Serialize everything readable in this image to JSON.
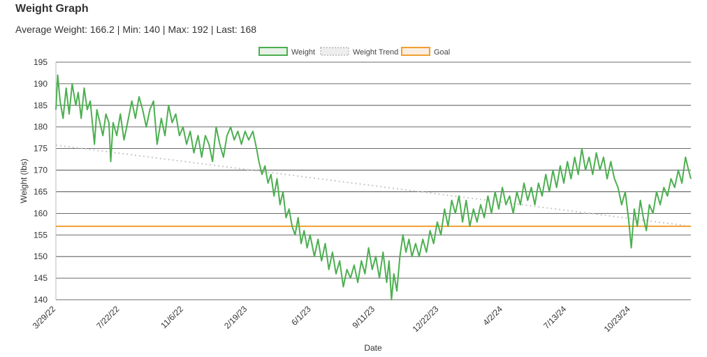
{
  "page": {
    "title": "Weight Graph",
    "stats_text": "Average Weight: 166.2 | Min: 140 | Max: 192 | Last: 168"
  },
  "chart_data": {
    "type": "line",
    "xlabel": "Date",
    "ylabel": "Weight (lbs)",
    "ylim": [
      140,
      195
    ],
    "yticks": [
      140,
      145,
      150,
      155,
      160,
      165,
      170,
      175,
      180,
      185,
      190,
      195
    ],
    "x_tick_labels": [
      "3/29/22",
      "7/22/22",
      "11/6/22",
      "2/19/23",
      "6/1/23",
      "9/11/23",
      "12/22/23",
      "4/2/24",
      "7/13/24",
      "10/23/24"
    ],
    "x_range": [
      "2022-03-29",
      "2025-02-15"
    ],
    "grid": true,
    "legend_position": "top-center",
    "colors": {
      "weight": "#4caf50",
      "trend": "#c8c8c8",
      "goal": "#f0a030"
    },
    "legend": [
      {
        "label": "Weight",
        "style": "weight"
      },
      {
        "label": "Weight Trend",
        "style": "trend"
      },
      {
        "label": "Goal",
        "style": "goal"
      }
    ],
    "series": [
      {
        "name": "Weight",
        "points": [
          [
            "2022-03-29",
            184
          ],
          [
            "2022-04-01",
            192
          ],
          [
            "2022-04-05",
            186
          ],
          [
            "2022-04-10",
            182
          ],
          [
            "2022-04-15",
            189
          ],
          [
            "2022-04-20",
            183
          ],
          [
            "2022-04-25",
            190
          ],
          [
            "2022-05-01",
            185
          ],
          [
            "2022-05-05",
            188
          ],
          [
            "2022-05-10",
            182
          ],
          [
            "2022-05-15",
            189
          ],
          [
            "2022-05-20",
            184
          ],
          [
            "2022-05-25",
            186
          ],
          [
            "2022-06-01",
            176
          ],
          [
            "2022-06-05",
            184
          ],
          [
            "2022-06-10",
            181
          ],
          [
            "2022-06-15",
            178
          ],
          [
            "2022-06-20",
            183
          ],
          [
            "2022-06-25",
            181
          ],
          [
            "2022-06-28",
            172
          ],
          [
            "2022-07-02",
            181
          ],
          [
            "2022-07-08",
            178
          ],
          [
            "2022-07-14",
            183
          ],
          [
            "2022-07-20",
            177
          ],
          [
            "2022-07-26",
            181
          ],
          [
            "2022-08-02",
            186
          ],
          [
            "2022-08-08",
            182
          ],
          [
            "2022-08-14",
            187
          ],
          [
            "2022-08-20",
            184
          ],
          [
            "2022-08-26",
            180
          ],
          [
            "2022-09-01",
            184
          ],
          [
            "2022-09-07",
            186
          ],
          [
            "2022-09-13",
            176
          ],
          [
            "2022-09-20",
            182
          ],
          [
            "2022-09-26",
            178
          ],
          [
            "2022-10-02",
            185
          ],
          [
            "2022-10-08",
            181
          ],
          [
            "2022-10-14",
            183
          ],
          [
            "2022-10-20",
            178
          ],
          [
            "2022-10-26",
            180
          ],
          [
            "2022-11-01",
            176
          ],
          [
            "2022-11-07",
            179
          ],
          [
            "2022-11-13",
            174
          ],
          [
            "2022-11-20",
            178
          ],
          [
            "2022-11-26",
            173
          ],
          [
            "2022-12-02",
            178
          ],
          [
            "2022-12-08",
            176
          ],
          [
            "2022-12-14",
            172
          ],
          [
            "2022-12-20",
            180
          ],
          [
            "2022-12-26",
            176
          ],
          [
            "2023-01-01",
            173
          ],
          [
            "2023-01-07",
            178
          ],
          [
            "2023-01-13",
            180
          ],
          [
            "2023-01-19",
            177
          ],
          [
            "2023-01-25",
            179
          ],
          [
            "2023-01-31",
            176
          ],
          [
            "2023-02-06",
            179
          ],
          [
            "2023-02-12",
            177
          ],
          [
            "2023-02-19",
            179
          ],
          [
            "2023-02-25",
            175
          ],
          [
            "2023-03-01",
            172
          ],
          [
            "2023-03-06",
            169
          ],
          [
            "2023-03-11",
            171
          ],
          [
            "2023-03-16",
            167
          ],
          [
            "2023-03-21",
            169
          ],
          [
            "2023-03-26",
            164
          ],
          [
            "2023-03-31",
            168
          ],
          [
            "2023-04-05",
            162
          ],
          [
            "2023-04-10",
            165
          ],
          [
            "2023-04-15",
            159
          ],
          [
            "2023-04-20",
            161
          ],
          [
            "2023-04-25",
            157
          ],
          [
            "2023-04-30",
            155
          ],
          [
            "2023-05-05",
            159
          ],
          [
            "2023-05-10",
            153
          ],
          [
            "2023-05-15",
            156
          ],
          [
            "2023-05-20",
            152
          ],
          [
            "2023-05-25",
            155
          ],
          [
            "2023-06-01",
            150
          ],
          [
            "2023-06-07",
            154
          ],
          [
            "2023-06-13",
            149
          ],
          [
            "2023-06-19",
            153
          ],
          [
            "2023-06-25",
            147
          ],
          [
            "2023-07-01",
            151
          ],
          [
            "2023-07-07",
            146
          ],
          [
            "2023-07-13",
            149
          ],
          [
            "2023-07-19",
            143
          ],
          [
            "2023-07-25",
            147
          ],
          [
            "2023-07-31",
            145
          ],
          [
            "2023-08-06",
            148
          ],
          [
            "2023-08-12",
            144
          ],
          [
            "2023-08-18",
            149
          ],
          [
            "2023-08-24",
            146
          ],
          [
            "2023-08-30",
            152
          ],
          [
            "2023-09-05",
            147
          ],
          [
            "2023-09-11",
            150
          ],
          [
            "2023-09-17",
            145
          ],
          [
            "2023-09-23",
            151
          ],
          [
            "2023-09-29",
            144
          ],
          [
            "2023-10-03",
            149
          ],
          [
            "2023-10-07",
            140
          ],
          [
            "2023-10-11",
            146
          ],
          [
            "2023-10-16",
            142
          ],
          [
            "2023-10-21",
            150
          ],
          [
            "2023-10-26",
            155
          ],
          [
            "2023-10-31",
            151
          ],
          [
            "2023-11-05",
            154
          ],
          [
            "2023-11-10",
            150
          ],
          [
            "2023-11-16",
            153
          ],
          [
            "2023-11-22",
            150
          ],
          [
            "2023-11-28",
            154
          ],
          [
            "2023-12-04",
            151
          ],
          [
            "2023-12-10",
            156
          ],
          [
            "2023-12-16",
            153
          ],
          [
            "2023-12-22",
            158
          ],
          [
            "2023-12-28",
            155
          ],
          [
            "2024-01-03",
            161
          ],
          [
            "2024-01-09",
            157
          ],
          [
            "2024-01-15",
            163
          ],
          [
            "2024-01-21",
            160
          ],
          [
            "2024-01-27",
            164
          ],
          [
            "2024-02-02",
            158
          ],
          [
            "2024-02-08",
            163
          ],
          [
            "2024-02-14",
            157
          ],
          [
            "2024-02-20",
            161
          ],
          [
            "2024-02-26",
            158
          ],
          [
            "2024-03-03",
            162
          ],
          [
            "2024-03-09",
            159
          ],
          [
            "2024-03-15",
            164
          ],
          [
            "2024-03-21",
            160
          ],
          [
            "2024-03-27",
            165
          ],
          [
            "2024-04-02",
            161
          ],
          [
            "2024-04-08",
            166
          ],
          [
            "2024-04-14",
            162
          ],
          [
            "2024-04-20",
            164
          ],
          [
            "2024-04-26",
            160
          ],
          [
            "2024-05-02",
            165
          ],
          [
            "2024-05-08",
            162
          ],
          [
            "2024-05-14",
            167
          ],
          [
            "2024-05-20",
            163
          ],
          [
            "2024-05-26",
            166
          ],
          [
            "2024-06-01",
            162
          ],
          [
            "2024-06-07",
            167
          ],
          [
            "2024-06-13",
            164
          ],
          [
            "2024-06-19",
            169
          ],
          [
            "2024-06-25",
            165
          ],
          [
            "2024-07-01",
            170
          ],
          [
            "2024-07-07",
            166
          ],
          [
            "2024-07-13",
            171
          ],
          [
            "2024-07-19",
            167
          ],
          [
            "2024-07-25",
            172
          ],
          [
            "2024-07-31",
            168
          ],
          [
            "2024-08-06",
            173
          ],
          [
            "2024-08-12",
            169
          ],
          [
            "2024-08-18",
            175
          ],
          [
            "2024-08-24",
            170
          ],
          [
            "2024-08-30",
            173
          ],
          [
            "2024-09-05",
            169
          ],
          [
            "2024-09-11",
            174
          ],
          [
            "2024-09-17",
            170
          ],
          [
            "2024-09-23",
            173
          ],
          [
            "2024-09-29",
            168
          ],
          [
            "2024-10-05",
            172
          ],
          [
            "2024-10-11",
            168
          ],
          [
            "2024-10-17",
            166
          ],
          [
            "2024-10-23",
            162
          ],
          [
            "2024-10-29",
            165
          ],
          [
            "2024-11-04",
            158
          ],
          [
            "2024-11-08",
            152
          ],
          [
            "2024-11-13",
            161
          ],
          [
            "2024-11-18",
            157
          ],
          [
            "2024-11-23",
            163
          ],
          [
            "2024-11-28",
            159
          ],
          [
            "2024-12-03",
            156
          ],
          [
            "2024-12-08",
            162
          ],
          [
            "2024-12-14",
            160
          ],
          [
            "2024-12-20",
            165
          ],
          [
            "2024-12-26",
            162
          ],
          [
            "2025-01-01",
            166
          ],
          [
            "2025-01-07",
            164
          ],
          [
            "2025-01-13",
            168
          ],
          [
            "2025-01-19",
            166
          ],
          [
            "2025-01-25",
            170
          ],
          [
            "2025-01-31",
            167
          ],
          [
            "2025-02-06",
            173
          ],
          [
            "2025-02-11",
            170
          ],
          [
            "2025-02-15",
            168
          ]
        ]
      },
      {
        "name": "Weight Trend",
        "points": [
          [
            "2022-03-29",
            175.8
          ],
          [
            "2025-02-15",
            157
          ]
        ]
      },
      {
        "name": "Goal",
        "points": [
          [
            "2022-03-29",
            157
          ],
          [
            "2025-02-15",
            157
          ]
        ]
      }
    ]
  }
}
